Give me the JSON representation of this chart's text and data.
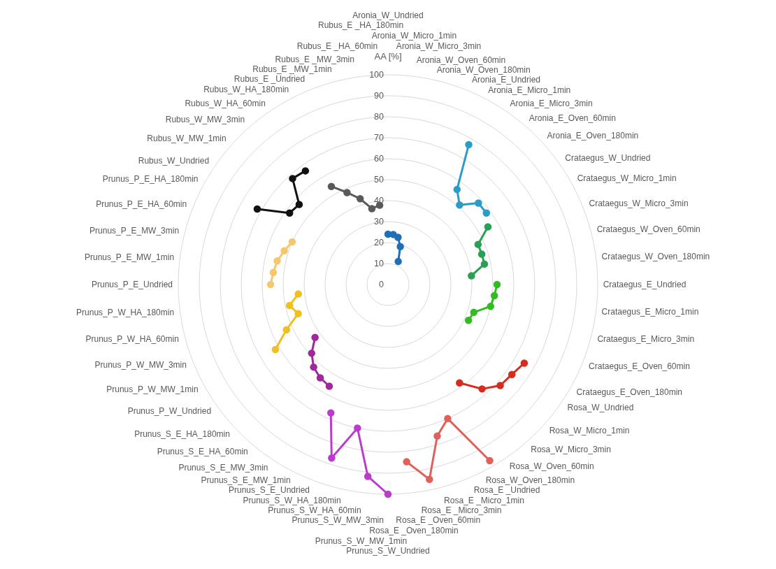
{
  "chart_data": {
    "type": "radar",
    "ylabel": "AA [%]",
    "ylim": [
      0,
      100
    ],
    "yticks": [
      0,
      10,
      20,
      30,
      40,
      50,
      60,
      70,
      80,
      90,
      100
    ],
    "grid": true,
    "marker": "circle",
    "categories": [
      "Aronia_W_Undried",
      "Aronia_W_Micro_1min",
      "Aronia_W_Micro_3min",
      "Aronia_W_Oven_60min",
      "Aronia_W_Oven_180min",
      "Aronia_E_Undried",
      "Aronia_E_Micro_1min",
      "Aronia_E_Micro_3min",
      "Aronia_E_Oven_60min",
      "Aronia_E_Oven_180min",
      "Crataegus_W_Undried",
      "Crataegus_W_Micro_1min",
      "Crataegus_W_Micro_3min",
      "Crataegus_W_Oven_60min",
      "Crataegus_W_Oven_180min",
      "Crataegus_E_Undried",
      "Crataegus_E_Micro_1min",
      "Crataegus_E_Micro_3min",
      "Crataegus_E_Oven_60min",
      "Crataegus_E_Oven_180min",
      "Rosa_W_Undried",
      "Rosa_W_Micro_1min",
      "Rosa_W_Micro_3min",
      "Rosa_W_Oven_60min",
      "Rosa_W_Oven_180min",
      "Rosa_E _Undried",
      "Rosa_E _Micro_1min",
      "Rosa_E _Micro_3min",
      "Rosa_E _Oven_60min",
      "Rosa_E _Oven_180min",
      "Prunus_S_W_Undried",
      "Prunus_S_W_MW_1min",
      "Prunus_S_W_MW_3min",
      "Prunus_S_W_HA_60min",
      "Prunus_S_W_HA_180min",
      "Prunus_S_E_Undried",
      "Prunus_S_E_MW_1min",
      "Prunus_S_E_MW_3min",
      "Prunus_S_E_HA_60min",
      "Prunus_S_E_HA_180min",
      "Prunus_P_W_Undried",
      "Prunus_P_W_MW_1min",
      "Prunus_P_W_MW_3min",
      "Prunus_P_W_HA_60min",
      "Prunus_P_W_HA_180min",
      "Prunus_P_E_Undried",
      "Prunus_P_E_MW_1min",
      "Prunus_P_E_MW_3min",
      "Prunus_P_E_HA_60min",
      "Prunus_P_E_HA_180min",
      "Rubus_W_Undried",
      "Rubus_W_MW_1min",
      "Rubus_W_MW_3min",
      "Rubus_W_HA_60min",
      "Rubus_W_HA_180min",
      "Rubus_E _Undried",
      "Rubus_E _MW_1min",
      "Rubus_E _MW_3min",
      "Rubus_E _HA_60min",
      "Rubus_E _HA_180min"
    ],
    "series": [
      {
        "color": "#1f6fb8",
        "values": [
          24,
          24,
          23,
          19,
          12,
          null,
          null,
          null,
          null,
          null,
          null,
          null,
          null,
          null,
          null,
          null,
          null,
          null,
          null,
          null,
          null,
          null,
          null,
          null,
          null,
          null,
          null,
          null,
          null,
          null,
          null,
          null,
          null,
          null,
          null,
          null,
          null,
          null,
          null,
          null,
          null,
          null,
          null,
          null,
          null,
          null,
          null,
          null,
          null,
          null,
          null,
          null,
          null,
          null,
          null,
          null,
          null,
          null,
          null,
          null
        ]
      },
      {
        "color": "#2a9cc8",
        "values": [
          null,
          null,
          null,
          null,
          null,
          77,
          56,
          51,
          58,
          58,
          null,
          null,
          null,
          null,
          null,
          null,
          null,
          null,
          null,
          null,
          null,
          null,
          null,
          null,
          null,
          null,
          null,
          null,
          null,
          null,
          null,
          null,
          null,
          null,
          null,
          null,
          null,
          null,
          null,
          null,
          null,
          null,
          null,
          null,
          null,
          null,
          null,
          null,
          null,
          null,
          null,
          null,
          null,
          null,
          null,
          null,
          null,
          null,
          null,
          null
        ]
      },
      {
        "color": "#2aa055",
        "values": [
          null,
          null,
          null,
          null,
          null,
          null,
          null,
          null,
          null,
          null,
          55,
          47,
          47,
          47,
          40,
          null,
          null,
          null,
          null,
          null,
          null,
          null,
          null,
          null,
          null,
          null,
          null,
          null,
          null,
          null,
          null,
          null,
          null,
          null,
          null,
          null,
          null,
          null,
          null,
          null,
          null,
          null,
          null,
          null,
          null,
          null,
          null,
          null,
          null,
          null,
          null,
          null,
          null,
          null,
          null,
          null,
          null,
          null,
          null,
          null
        ]
      },
      {
        "color": "#33bb22",
        "values": [
          null,
          null,
          null,
          null,
          null,
          null,
          null,
          null,
          null,
          null,
          null,
          null,
          null,
          null,
          null,
          52,
          51,
          50,
          43,
          42,
          null,
          null,
          null,
          null,
          null,
          null,
          null,
          null,
          null,
          null,
          null,
          null,
          null,
          null,
          null,
          null,
          null,
          null,
          null,
          null,
          null,
          null,
          null,
          null,
          null,
          null,
          null,
          null,
          null,
          null,
          null,
          null,
          null,
          null,
          null,
          null,
          null,
          null,
          null,
          null
        ]
      },
      {
        "color": "#d92b1c",
        "values": [
          null,
          null,
          null,
          null,
          null,
          null,
          null,
          null,
          null,
          null,
          null,
          null,
          null,
          null,
          null,
          null,
          null,
          null,
          null,
          null,
          75,
          73,
          72,
          67,
          58,
          null,
          null,
          null,
          null,
          null,
          null,
          null,
          null,
          null,
          null,
          null,
          null,
          null,
          null,
          null,
          null,
          null,
          null,
          null,
          null,
          null,
          null,
          null,
          null,
          null,
          null,
          null,
          null,
          null,
          null,
          null,
          null,
          null,
          null,
          null
        ]
      },
      {
        "color": "#e0605a",
        "values": [
          null,
          null,
          null,
          null,
          null,
          null,
          null,
          null,
          null,
          null,
          null,
          null,
          null,
          null,
          null,
          null,
          null,
          null,
          null,
          null,
          null,
          null,
          null,
          null,
          null,
          97,
          70,
          76,
          95,
          85,
          null,
          null,
          null,
          null,
          null,
          null,
          null,
          null,
          null,
          null,
          null,
          null,
          null,
          null,
          null,
          null,
          null,
          null,
          null,
          null,
          null,
          null,
          null,
          null,
          null,
          null,
          null,
          null,
          null,
          null
        ]
      },
      {
        "color": "#bb3ccc",
        "values": [
          null,
          null,
          null,
          null,
          null,
          null,
          null,
          null,
          null,
          null,
          null,
          null,
          null,
          null,
          null,
          null,
          null,
          null,
          null,
          null,
          null,
          null,
          null,
          null,
          null,
          null,
          null,
          null,
          null,
          null,
          100,
          92,
          70,
          87,
          67,
          null,
          null,
          null,
          null,
          null,
          null,
          null,
          null,
          null,
          null,
          null,
          null,
          null,
          null,
          null,
          null,
          null,
          null,
          null,
          null,
          null,
          null,
          null,
          null,
          null
        ]
      },
      {
        "color": "#a0289c",
        "values": [
          null,
          null,
          null,
          null,
          null,
          null,
          null,
          null,
          null,
          null,
          null,
          null,
          null,
          null,
          null,
          null,
          null,
          null,
          null,
          null,
          null,
          null,
          null,
          null,
          null,
          null,
          null,
          null,
          null,
          null,
          null,
          null,
          null,
          null,
          null,
          56,
          55,
          53,
          49,
          43,
          null,
          null,
          null,
          null,
          null,
          null,
          null,
          null,
          null,
          null,
          null,
          null,
          null,
          null,
          null,
          null,
          null,
          null,
          null,
          null
        ]
      },
      {
        "color": "#f0c020",
        "values": [
          null,
          null,
          null,
          null,
          null,
          null,
          null,
          null,
          null,
          null,
          null,
          null,
          null,
          null,
          null,
          null,
          null,
          null,
          null,
          null,
          null,
          null,
          null,
          null,
          null,
          null,
          null,
          null,
          null,
          null,
          null,
          null,
          null,
          null,
          null,
          null,
          null,
          null,
          null,
          null,
          62,
          53,
          45,
          48,
          43,
          null,
          null,
          null,
          null,
          null,
          null,
          null,
          null,
          null,
          null,
          null,
          null,
          null,
          null,
          null
        ]
      },
      {
        "color": "#f5c870",
        "values": [
          null,
          null,
          null,
          null,
          null,
          null,
          null,
          null,
          null,
          null,
          null,
          null,
          null,
          null,
          null,
          null,
          null,
          null,
          null,
          null,
          null,
          null,
          null,
          null,
          null,
          null,
          null,
          null,
          null,
          null,
          null,
          null,
          null,
          null,
          null,
          null,
          null,
          null,
          null,
          null,
          null,
          null,
          null,
          null,
          null,
          56,
          55,
          54,
          52,
          50,
          null,
          null,
          null,
          null,
          null,
          null,
          null,
          null,
          null,
          null
        ]
      },
      {
        "color": "#111111",
        "values": [
          null,
          null,
          null,
          null,
          null,
          null,
          null,
          null,
          null,
          null,
          null,
          null,
          null,
          null,
          null,
          null,
          null,
          null,
          null,
          null,
          null,
          null,
          null,
          null,
          null,
          null,
          null,
          null,
          null,
          null,
          null,
          null,
          null,
          null,
          null,
          null,
          null,
          null,
          null,
          null,
          null,
          null,
          null,
          null,
          null,
          null,
          null,
          null,
          null,
          null,
          72,
          58,
          57,
          68,
          67,
          null,
          null,
          null,
          null,
          null
        ]
      },
      {
        "color": "#595959",
        "values": [
          null,
          null,
          null,
          null,
          null,
          null,
          null,
          null,
          null,
          null,
          null,
          null,
          null,
          null,
          null,
          null,
          null,
          null,
          null,
          null,
          null,
          null,
          null,
          null,
          null,
          null,
          null,
          null,
          null,
          null,
          null,
          null,
          null,
          null,
          null,
          null,
          null,
          null,
          null,
          null,
          null,
          null,
          null,
          null,
          null,
          null,
          null,
          null,
          null,
          null,
          null,
          null,
          null,
          null,
          null,
          54,
          48,
          43,
          37,
          38
        ]
      }
    ]
  }
}
